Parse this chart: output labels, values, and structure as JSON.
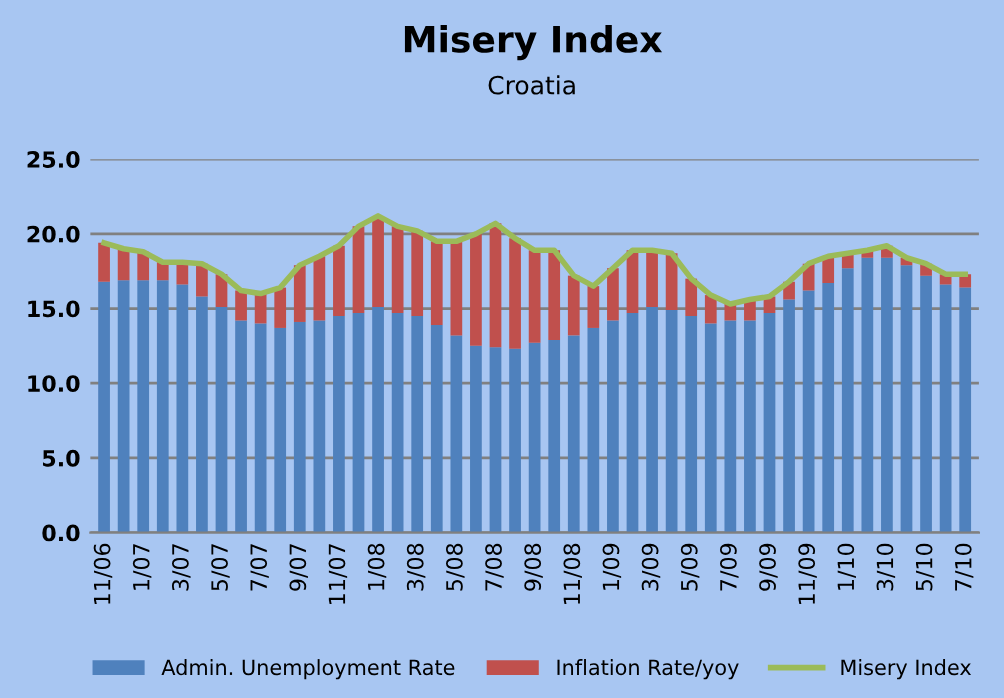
{
  "chart_data": {
    "type": "bar",
    "title": "Misery Index",
    "subtitle": "Croatia",
    "stacked": true,
    "categories": [
      "11/06",
      null,
      "1/07",
      null,
      "3/07",
      null,
      "5/07",
      null,
      "7/07",
      null,
      "9/07",
      null,
      "11/07",
      null,
      "1/08",
      null,
      "3/08",
      null,
      "5/08",
      null,
      "7/08",
      null,
      "9/08",
      null,
      "11/08",
      null,
      "1/09",
      null,
      "3/09",
      null,
      "5/09",
      null,
      "7/09",
      null,
      "9/09",
      null,
      "11/09",
      null,
      "1/10",
      null,
      "3/10",
      null,
      "5/10",
      null,
      "7/10"
    ],
    "series": [
      {
        "name": "Admin. Unemployment Rate",
        "color": "#4f81bd",
        "values": [
          16.8,
          16.9,
          16.9,
          16.9,
          16.6,
          15.8,
          15.1,
          14.2,
          14.0,
          13.7,
          14.1,
          14.2,
          14.5,
          14.7,
          15.1,
          14.7,
          14.5,
          13.9,
          13.2,
          12.5,
          12.4,
          12.3,
          12.7,
          12.9,
          13.2,
          13.7,
          14.2,
          14.7,
          15.1,
          14.9,
          14.5,
          14.0,
          14.2,
          14.2,
          14.7,
          15.6,
          16.2,
          16.7,
          17.7,
          18.4,
          18.4,
          17.9,
          17.2,
          16.6,
          16.4
        ]
      },
      {
        "name": "Inflation Rate/yoy",
        "color": "#c0504d",
        "values": [
          2.6,
          2.1,
          1.9,
          1.2,
          1.5,
          2.2,
          2.2,
          2.0,
          2.0,
          2.7,
          3.8,
          4.3,
          4.7,
          5.8,
          6.1,
          5.8,
          5.7,
          5.6,
          6.3,
          7.5,
          8.3,
          7.4,
          6.2,
          6.0,
          4.0,
          2.8,
          3.5,
          4.2,
          3.8,
          3.8,
          2.5,
          1.9,
          1.1,
          1.4,
          1.1,
          1.2,
          1.8,
          1.8,
          1.0,
          0.5,
          0.8,
          0.5,
          0.8,
          0.7,
          0.9
        ]
      },
      {
        "name": "Misery Index",
        "type": "line",
        "color": "#9bbb59",
        "values": [
          19.4,
          19.0,
          18.8,
          18.1,
          18.1,
          18.0,
          17.3,
          16.2,
          16.0,
          16.4,
          17.9,
          18.5,
          19.2,
          20.5,
          21.2,
          20.5,
          20.2,
          19.5,
          19.5,
          20.0,
          20.7,
          19.7,
          18.9,
          18.9,
          17.2,
          16.5,
          17.7,
          18.9,
          18.9,
          18.7,
          17.0,
          15.9,
          15.3,
          15.6,
          15.8,
          16.8,
          18.0,
          18.5,
          18.7,
          18.9,
          19.2,
          18.4,
          18.0,
          17.3,
          17.3
        ]
      }
    ],
    "ylim": [
      0,
      25
    ],
    "yticks": [
      {
        "value": 0,
        "label": "0.0"
      },
      {
        "value": 5,
        "label": "5.0"
      },
      {
        "value": 10,
        "label": "10.0"
      },
      {
        "value": 15,
        "label": "15.0"
      },
      {
        "value": 20,
        "label": "20.0"
      },
      {
        "value": 25,
        "label": "25.0"
      }
    ],
    "grid": "y",
    "legend": "bottom",
    "marker": "none"
  }
}
